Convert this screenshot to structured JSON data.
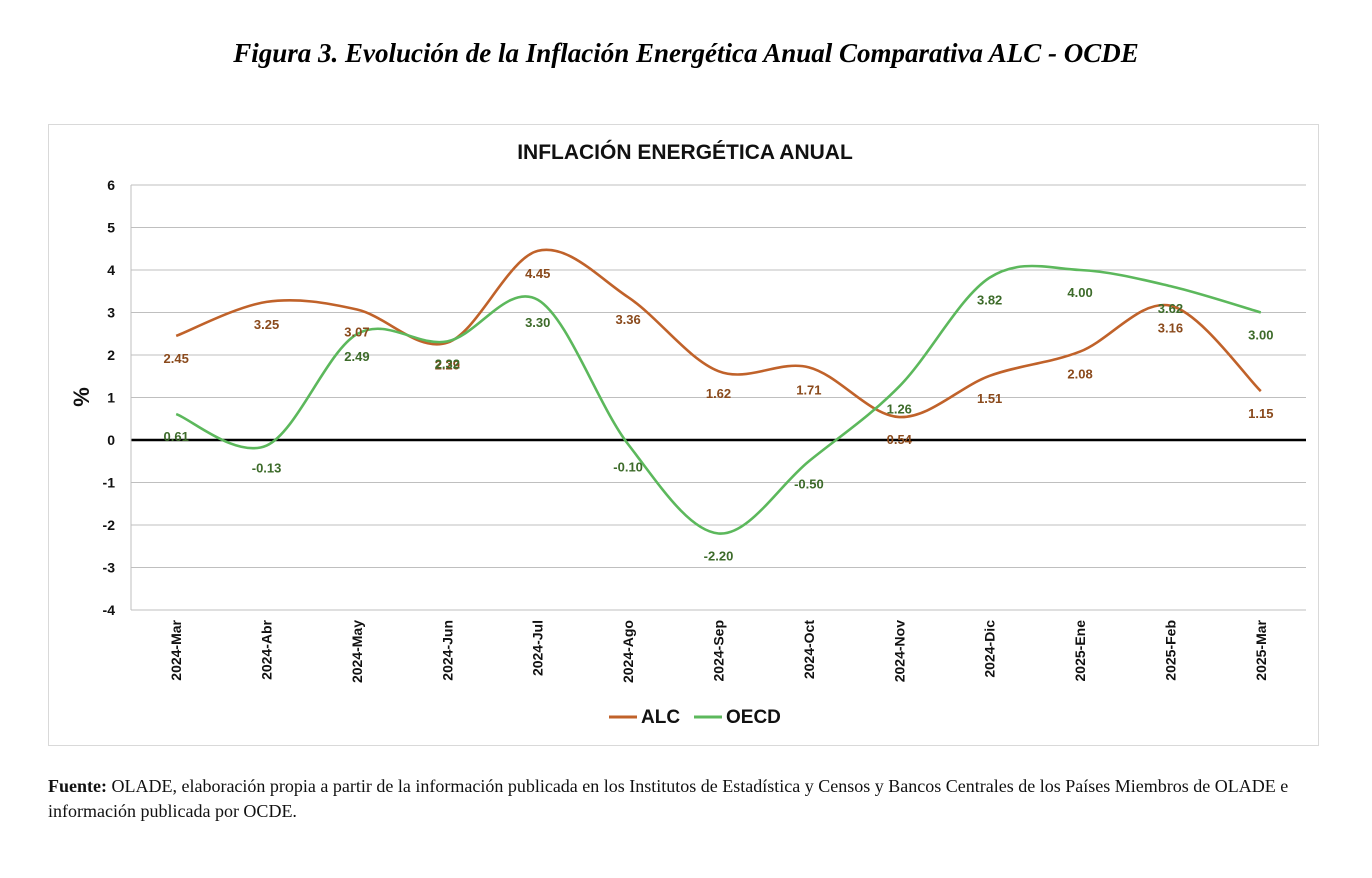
{
  "figure": {
    "caption": "Figura 3. Evolución de la Inflación Energética Anual Comparativa ALC - OCDE",
    "source_label": "Fuente:",
    "source_text": " OLADE, elaboración propia a partir de la información publicada en los Institutos de Estadística y Censos y Bancos Centrales de los Países Miembros de OLADE e información publicada por OCDE."
  },
  "chart_data": {
    "type": "line",
    "title": "INFLACIÓN ENERGÉTICA ANUAL",
    "xlabel": "",
    "ylabel": "%",
    "ylim": [
      -4,
      6
    ],
    "yticks": [
      6,
      5,
      4,
      3,
      2,
      1,
      0,
      -1,
      -2,
      -3,
      -4
    ],
    "grid": true,
    "smooth": true,
    "legend_position": "bottom",
    "categories": [
      "2024-Mar",
      "2024-Abr",
      "2024-May",
      "2024-Jun",
      "2024-Jul",
      "2024-Ago",
      "2024-Sep",
      "2024-Oct",
      "2024-Nov",
      "2024-Dic",
      "2025-Ene",
      "2025-Feb",
      "2025-Mar"
    ],
    "series": [
      {
        "name": "ALC",
        "color": "#c0622a",
        "label_color": "#8a4a1c",
        "values": [
          2.45,
          3.25,
          3.07,
          2.29,
          4.45,
          3.36,
          1.62,
          1.71,
          0.54,
          1.51,
          2.08,
          3.16,
          1.15
        ],
        "labels": [
          "2.45",
          "3.25",
          "3.07",
          "2.29",
          "4.45",
          "3.36",
          "1.62",
          "1.71",
          "0.54",
          "1.51",
          "2.08",
          "3.16",
          "1.15"
        ]
      },
      {
        "name": "OECD",
        "color": "#5cb85c",
        "label_color": "#3d6b2a",
        "values": [
          0.61,
          -0.13,
          2.49,
          2.32,
          3.3,
          -0.1,
          -2.2,
          -0.5,
          1.26,
          3.82,
          4.0,
          3.62,
          3.0
        ],
        "labels": [
          "0.61",
          "-0.13",
          "2.49",
          "2.32",
          "3.30",
          "-0.10",
          "-2.20",
          "-0.50",
          "1.26",
          "3.82",
          "4.00",
          "3.62",
          "3.00"
        ]
      }
    ]
  }
}
